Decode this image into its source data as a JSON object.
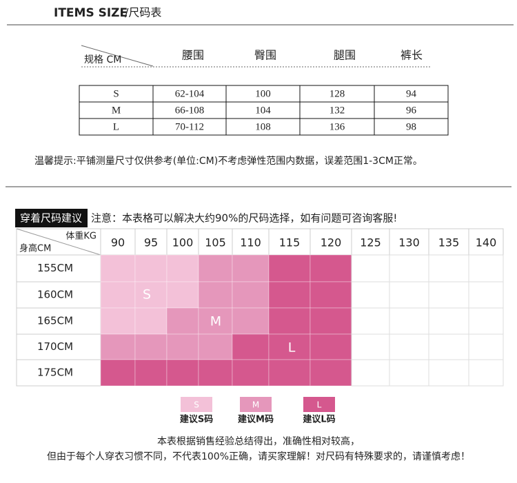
{
  "header": {
    "title_en": "ITEMS SIZE",
    "title_cn": "/尺码表"
  },
  "size_table": {
    "corner": "规格 CM",
    "columns": [
      "腰围",
      "臀围",
      "腿围",
      "裤长"
    ],
    "rows": [
      [
        "S",
        "62-104",
        "100",
        "128",
        "94"
      ],
      [
        "M",
        "66-108",
        "104",
        "132",
        "96"
      ],
      [
        "L",
        "70-112",
        "108",
        "136",
        "98"
      ]
    ]
  },
  "note": "温馨提示:平铺测量尺寸仅供参考(单位:CM)不考虑弹性范围内数据，误差范围1-3CM正常。",
  "recommendation": {
    "badge": "穿着尺码建议",
    "notice": "注意：本表格可以解决大约90%的尺码选择，如有问题可咨询客服!",
    "corner_top": "体重KG",
    "corner_bottom": "身高CM",
    "weights": [
      "90",
      "95",
      "100",
      "105",
      "110",
      "115",
      "120",
      "125",
      "130",
      "135",
      "140"
    ],
    "heights": [
      "155CM",
      "160CM",
      "165CM",
      "170CM",
      "175CM"
    ],
    "region_labels": [
      "S",
      "M",
      "L"
    ],
    "legend": [
      {
        "swatch": "S",
        "label": "建议S码"
      },
      {
        "swatch": "M",
        "label": "建议M码"
      },
      {
        "swatch": "L",
        "label": "建议L码"
      }
    ]
  },
  "footer": [
    "本表根据销售经验总结得出，准确性相对较高，",
    "但由于每个人穿衣习惯不同，不代表100%正确，请买家理解！对尺码有特殊要求的，请谨慎考虑！"
  ]
}
